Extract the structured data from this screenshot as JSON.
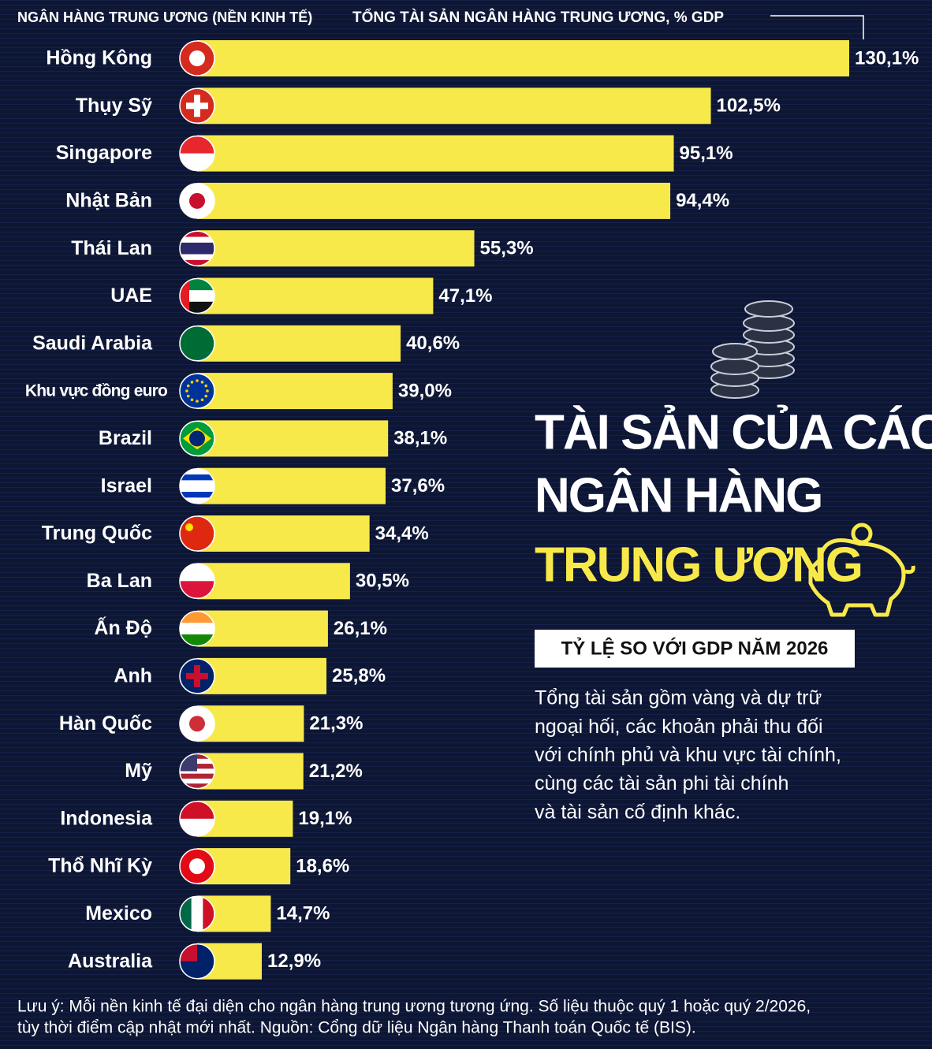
{
  "chart_data": {
    "type": "bar",
    "orientation": "horizontal",
    "category_header": "NGÂN HÀNG TRUNG ƯƠNG (NỀN KINH TẾ)",
    "value_header": "TỔNG TÀI SẢN NGÂN HÀNG TRUNG ƯƠNG, % GDP",
    "title_lines": [
      "TÀI SẢN CỦA CÁC",
      "NGÂN HÀNG",
      "TRUNG ƯƠNG"
    ],
    "subtitle": "TỶ LỆ SO VỚI GDP NĂM 2026",
    "description": [
      "Tổng tài sản gồm vàng và dự trữ",
      "ngoại hối, các khoản phải thu đối",
      "với chính phủ và khu vực tài chính,",
      "cùng các tài sản phi tài chính",
      "và tài sản cố định khác."
    ],
    "note": [
      "Lưu ý: Mỗi nền kinh tế đại diện cho ngân hàng trung ương tương ứng. Số liệu thuộc quý 1 hoặc quý 2/2026,",
      "tùy thời điểm cập nhật mới nhất. Nguồn: Cổng dữ liệu Ngân hàng Thanh toán Quốc tế (BIS)."
    ],
    "categories": [
      "Hồng Kông",
      "Thụy Sỹ",
      "Singapore",
      "Nhật Bản",
      "Thái Lan",
      "UAE",
      "Saudi Arabia",
      "Khu vực đồng euro",
      "Brazil",
      "Israel",
      "Trung Quốc",
      "Ba Lan",
      "Ấn Độ",
      "Anh",
      "Hàn Quốc",
      "Mỹ",
      "Indonesia",
      "Thổ Nhĩ Kỳ",
      "Mexico",
      "Australia"
    ],
    "values": [
      130.1,
      102.5,
      95.1,
      94.4,
      55.3,
      47.1,
      40.6,
      39.0,
      38.1,
      37.6,
      34.4,
      30.5,
      26.1,
      25.8,
      21.3,
      21.2,
      19.1,
      18.6,
      14.7,
      12.9
    ],
    "value_labels": [
      "130,1%",
      "102,5%",
      "95,1%",
      "94,4%",
      "55,3%",
      "47,1%",
      "40,6%",
      "39,0%",
      "38,1%",
      "37,6%",
      "34,4%",
      "30,5%",
      "26,1%",
      "25,8%",
      "21,3%",
      "21,2%",
      "19,1%",
      "18,6%",
      "14,7%",
      "12,9%"
    ],
    "color": "#f8e94a"
  }
}
